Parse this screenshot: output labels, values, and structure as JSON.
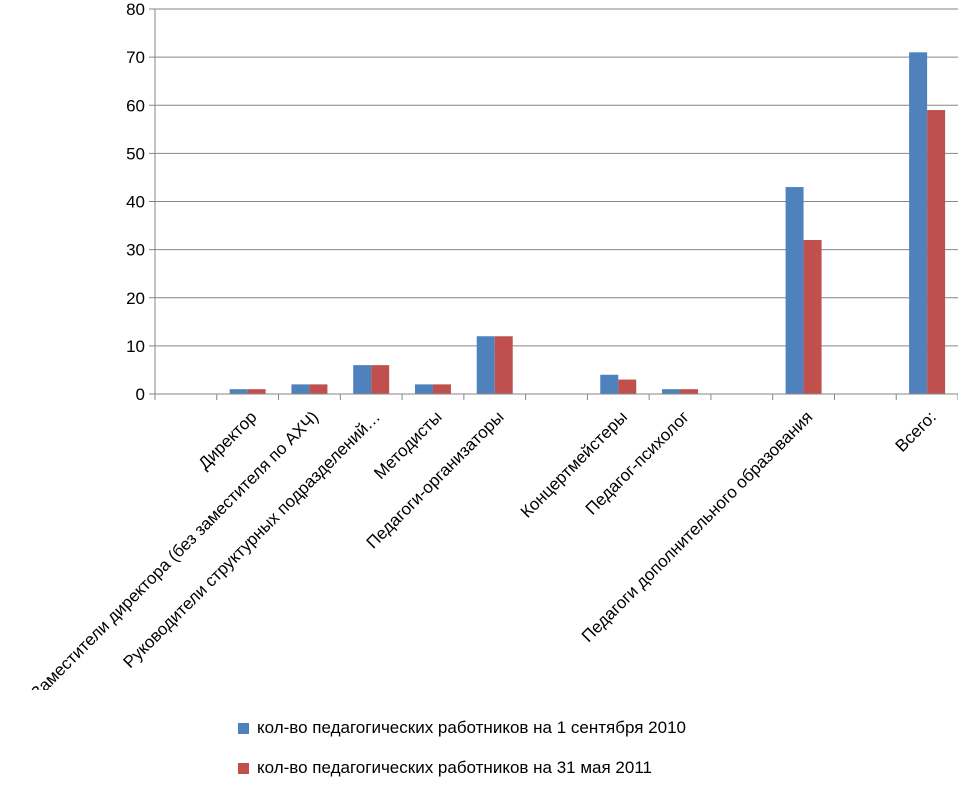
{
  "chart_data": {
    "type": "bar",
    "categories": [
      "",
      "Директор",
      "Заместители директора (без заместителя по АХЧ)",
      "Руководители структурных подразделений…",
      "Методисты",
      "Педагоги-организаторы",
      "",
      "Концертмейстеры",
      "Педагог-психолог",
      "",
      "Педагоги дополнительного образования",
      "",
      "Всего:"
    ],
    "series": [
      {
        "name": "кол-во педагогических работников на 1 сентября 2010",
        "color": "#4F81BD",
        "values": [
          0,
          1,
          2,
          6,
          2,
          12,
          0,
          4,
          1,
          0,
          43,
          0,
          71
        ]
      },
      {
        "name": "кол-во педагогических работников на 31 мая 2011",
        "color": "#C0504D",
        "values": [
          0,
          1,
          2,
          6,
          2,
          12,
          0,
          3,
          1,
          0,
          32,
          0,
          59
        ]
      }
    ],
    "yticks": [
      0,
      10,
      20,
      30,
      40,
      50,
      60,
      70,
      80
    ],
    "ylim": [
      0,
      80
    ],
    "grid": true,
    "legend": "bottom"
  }
}
